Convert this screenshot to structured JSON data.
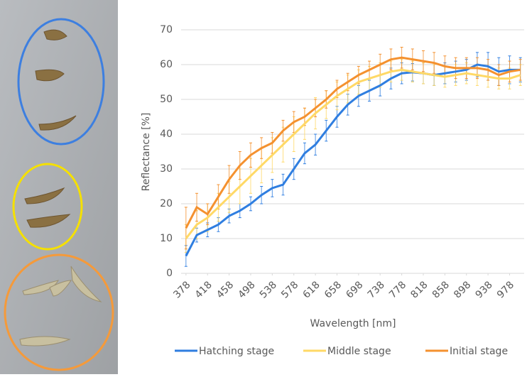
{
  "chart_data": {
    "type": "line",
    "ylabel": "Reflectance [%]",
    "xlabel": "Wavelength [nm]",
    "x": [
      378,
      398,
      418,
      438,
      458,
      478,
      498,
      518,
      538,
      558,
      578,
      598,
      618,
      638,
      658,
      678,
      698,
      718,
      738,
      758,
      778,
      798,
      818,
      838,
      858,
      878,
      898,
      918,
      938,
      958,
      978,
      998
    ],
    "xlim": [
      369,
      1005
    ],
    "xticks": [
      378,
      418,
      458,
      498,
      538,
      578,
      618,
      658,
      698,
      738,
      778,
      818,
      858,
      898,
      938,
      978
    ],
    "ylim": [
      0,
      70
    ],
    "yticks": [
      0,
      10,
      20,
      30,
      40,
      50,
      60,
      70
    ],
    "grid": true,
    "legend": "bottom",
    "series": [
      {
        "name": "Hatching stage",
        "color": "#2f7ee0",
        "values": [
          5,
          11,
          12.5,
          14,
          16.5,
          18,
          20,
          22.5,
          24.5,
          25.5,
          30,
          34.5,
          37,
          41,
          45,
          48.5,
          51,
          52.5,
          54,
          56,
          57.5,
          57.8,
          57.5,
          57,
          57.5,
          58,
          58.5,
          60,
          59.5,
          58,
          58.5,
          58.5
        ],
        "errors": [
          3,
          2,
          2,
          2,
          2,
          2,
          2,
          2.5,
          2.5,
          3,
          3,
          3,
          3,
          3,
          3,
          3,
          3,
          3,
          3,
          3,
          3,
          2.5,
          3,
          3,
          3,
          3,
          3,
          3.5,
          4,
          4,
          4,
          3.5
        ]
      },
      {
        "name": "Middle stage",
        "color": "#ffd966",
        "values": [
          10,
          14,
          16,
          19,
          22,
          25,
          28,
          31,
          34,
          37,
          40,
          43,
          46,
          48.5,
          51,
          53,
          55,
          56,
          57,
          58,
          58.5,
          58,
          57.5,
          57,
          56.5,
          57,
          57.5,
          57,
          56.5,
          56,
          56,
          57
        ],
        "errors": [
          4,
          4,
          4,
          4,
          4.5,
          5,
          5,
          5,
          5,
          5,
          5,
          4.5,
          4.5,
          4,
          4,
          4,
          3.5,
          3.5,
          3.5,
          3,
          3,
          3,
          3,
          3,
          3,
          3,
          3,
          3,
          3,
          3,
          3,
          3
        ]
      },
      {
        "name": "Initial stage",
        "color": "#f4912f",
        "values": [
          13,
          19,
          17,
          22,
          27,
          31,
          34,
          36,
          37.5,
          41,
          43.5,
          45,
          47.5,
          50,
          53,
          55,
          57,
          58.5,
          60,
          61.5,
          62,
          61.5,
          61,
          60.5,
          59.5,
          59,
          59,
          59,
          58.5,
          57,
          58,
          58.5
        ],
        "errors": [
          6,
          4,
          3,
          3.5,
          4,
          4,
          3.5,
          3,
          3,
          3,
          3,
          2.5,
          2.5,
          2.5,
          2.5,
          2.5,
          2.5,
          2.5,
          3,
          3,
          3,
          3,
          3,
          3,
          3,
          3,
          3,
          3,
          3,
          3,
          3,
          3
        ]
      }
    ]
  }
}
